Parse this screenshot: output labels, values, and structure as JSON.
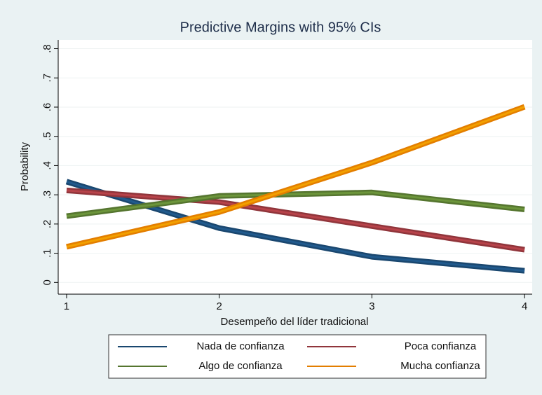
{
  "chart_data": {
    "type": "line",
    "title": "Predictive Margins with 95% CIs",
    "xlabel": "Desempeño del líder tradicional",
    "ylabel": "Probability",
    "x": [
      1,
      2,
      3,
      4
    ],
    "series": [
      {
        "name": "Nada de confianza",
        "color": "#1a476f",
        "values": [
          0.345,
          0.186,
          0.088,
          0.04
        ]
      },
      {
        "name": "Poca confianza",
        "color": "#90353b",
        "values": [
          0.315,
          0.275,
          0.193,
          0.112
        ]
      },
      {
        "name": "Algo de confianza",
        "color": "#55752f",
        "values": [
          0.227,
          0.296,
          0.308,
          0.25
        ]
      },
      {
        "name": "Mucha confianza",
        "color": "#e37e00",
        "values": [
          0.122,
          0.241,
          0.41,
          0.601
        ]
      }
    ],
    "xlim": [
      0.945,
      4.05
    ],
    "ylim": [
      -0.04,
      0.83
    ],
    "xticks": [
      1,
      2,
      3,
      4
    ],
    "yticks": [
      0,
      {
        "value": 0.1,
        "label": ".1"
      },
      {
        "value": 0.2,
        "label": ".2"
      },
      {
        "value": 0.3,
        "label": ".3"
      },
      {
        "value": 0.4,
        "label": ".4"
      },
      {
        "value": 0.5,
        "label": ".5"
      },
      {
        "value": 0.6,
        "label": ".6"
      },
      {
        "value": 0.7,
        "label": ".7"
      },
      {
        "value": 0.8,
        "label": ".8"
      }
    ],
    "grid": true,
    "legend": "bottom"
  }
}
